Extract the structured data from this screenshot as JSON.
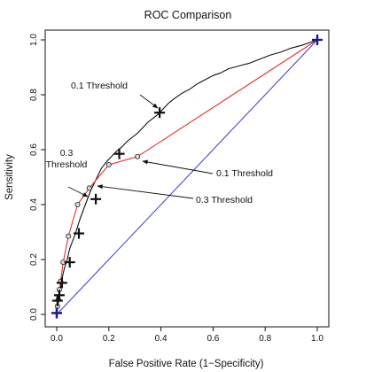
{
  "chart_data": {
    "type": "line",
    "title": "ROC Comparison",
    "xlabel": "False Positive Rate (1−Specificity)",
    "ylabel": "Sensitivity",
    "xlim": [
      0,
      1
    ],
    "ylim": [
      0,
      1
    ],
    "x_ticks": [
      {
        "value": 0,
        "label": "0.0"
      },
      {
        "value": 0.2,
        "label": "0.2"
      },
      {
        "value": 0.4,
        "label": "0.4"
      },
      {
        "value": 0.6,
        "label": "0.6"
      },
      {
        "value": 0.8,
        "label": "0.8"
      },
      {
        "value": 1.0,
        "label": "1.0"
      }
    ],
    "y_ticks": [
      {
        "value": 0,
        "label": "0.0"
      },
      {
        "value": 0.2,
        "label": "0.2"
      },
      {
        "value": 0.4,
        "label": "0.4"
      },
      {
        "value": 0.6,
        "label": "0.6"
      },
      {
        "value": 0.8,
        "label": "0.8"
      },
      {
        "value": 1.0,
        "label": "1.0"
      }
    ],
    "grid": false,
    "legend": "none",
    "series": [
      {
        "color": "#111111",
        "style": "line",
        "x": [
          0,
          0.003,
          0.006,
          0.01,
          0.015,
          0.02,
          0.03,
          0.04,
          0.05,
          0.07,
          0.09,
          0.11,
          0.13,
          0.15,
          0.17,
          0.19,
          0.21,
          0.23,
          0.25,
          0.27,
          0.29,
          0.31,
          0.33,
          0.35,
          0.37,
          0.39,
          0.41,
          0.43,
          0.45,
          0.48,
          0.51,
          0.54,
          0.57,
          0.6,
          0.63,
          0.66,
          0.7,
          0.74,
          0.78,
          0.82,
          0.86,
          0.9,
          0.94,
          0.97,
          1.0
        ],
        "y": [
          0,
          0.02,
          0.04,
          0.07,
          0.1,
          0.13,
          0.17,
          0.2,
          0.24,
          0.29,
          0.35,
          0.4,
          0.45,
          0.49,
          0.53,
          0.555,
          0.575,
          0.595,
          0.61,
          0.63,
          0.645,
          0.66,
          0.68,
          0.7,
          0.715,
          0.73,
          0.75,
          0.77,
          0.785,
          0.805,
          0.82,
          0.84,
          0.855,
          0.87,
          0.88,
          0.895,
          0.905,
          0.915,
          0.93,
          0.945,
          0.955,
          0.97,
          0.98,
          0.99,
          1.0
        ]
      },
      {
        "color": "#e53030",
        "style": "line+points",
        "x": [
          0,
          0.003,
          0.006,
          0.01,
          0.015,
          0.025,
          0.045,
          0.08,
          0.125,
          0.2,
          0.31,
          1.0
        ],
        "y": [
          0,
          0.03,
          0.055,
          0.09,
          0.12,
          0.19,
          0.285,
          0.4,
          0.46,
          0.545,
          0.575,
          1.0
        ]
      },
      {
        "color": "#3a3ad6",
        "style": "line",
        "x": [
          0,
          1
        ],
        "y": [
          0,
          1
        ]
      },
      {
        "color": "#111111",
        "style": "plus-markers",
        "x": [
          0,
          0.003,
          0.01,
          0.02,
          0.05,
          0.085,
          0.15,
          0.24,
          0.395
        ],
        "y": [
          0.005,
          0.05,
          0.07,
          0.115,
          0.19,
          0.295,
          0.42,
          0.585,
          0.735
        ]
      },
      {
        "color": "#1a1a8c",
        "style": "plus-markers",
        "x": [
          0,
          1.0
        ],
        "y": [
          0.005,
          1.0
        ]
      }
    ],
    "annotations": [
      {
        "lines": [
          "0.1 Threshold"
        ]
      },
      {
        "lines": [
          "0.1 Threshold"
        ]
      },
      {
        "lines": [
          "0.3",
          "Threshold"
        ]
      },
      {
        "lines": [
          "0.3 Threshold"
        ]
      }
    ]
  }
}
